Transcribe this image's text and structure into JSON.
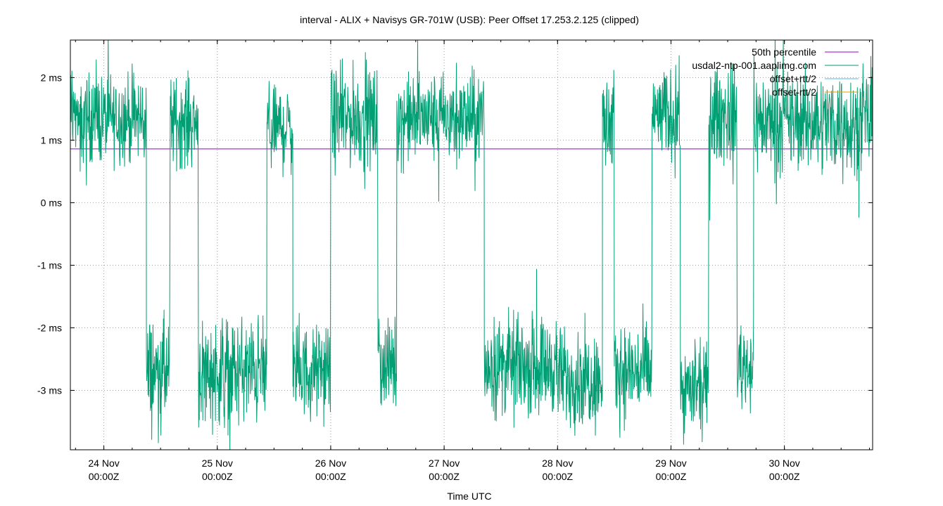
{
  "chart_data": {
    "type": "line",
    "title": "interval - ALIX + Navisys GR-701W (USB): Peer Offset 17.253.2.125 (clipped)",
    "xlabel": "Time UTC",
    "ylabel": "",
    "ylim": [
      -3.95,
      2.6
    ],
    "xlim": [
      "2023-11-23T16:55Z",
      "2023-11-30T18:40Z"
    ],
    "y_ticks": [
      {
        "value": 2,
        "label": "2 ms"
      },
      {
        "value": 1,
        "label": "1 ms"
      },
      {
        "value": 0,
        "label": "0 ms"
      },
      {
        "value": -1,
        "label": "-1 ms"
      },
      {
        "value": -2,
        "label": "-2 ms"
      },
      {
        "value": -3,
        "label": "-3 ms"
      }
    ],
    "x_ticks": [
      {
        "value": "2023-11-24T00:00Z",
        "line1": "24 Nov",
        "line2": "00:00Z"
      },
      {
        "value": "2023-11-25T00:00Z",
        "line1": "25 Nov",
        "line2": "00:00Z"
      },
      {
        "value": "2023-11-26T00:00Z",
        "line1": "26 Nov",
        "line2": "00:00Z"
      },
      {
        "value": "2023-11-27T00:00Z",
        "line1": "27 Nov",
        "line2": "00:00Z"
      },
      {
        "value": "2023-11-28T00:00Z",
        "line1": "28 Nov",
        "line2": "00:00Z"
      },
      {
        "value": "2023-11-29T00:00Z",
        "line1": "29 Nov",
        "line2": "00:00Z"
      },
      {
        "value": "2023-11-30T00:00Z",
        "line1": "30 Nov",
        "line2": "00:00Z"
      }
    ],
    "grid": true,
    "legend_position": "top-right",
    "series": [
      {
        "name": "50th percentile",
        "color": "#9400d3",
        "kind": "hline",
        "value": 0.86
      },
      {
        "name": "usdal2-ntp-001.aaplimg.com",
        "color": "#009e73",
        "kind": "regime-line",
        "segments": [
          {
            "start": "2023-11-23T16:55Z",
            "end": "2023-11-24T09:00Z",
            "level": 1.35,
            "spread": 0.5
          },
          {
            "start": "2023-11-24T09:00Z",
            "end": "2023-11-24T14:00Z",
            "level": -2.7,
            "spread": 0.6
          },
          {
            "start": "2023-11-24T14:00Z",
            "end": "2023-11-24T20:00Z",
            "level": 1.3,
            "spread": 0.5
          },
          {
            "start": "2023-11-24T20:00Z",
            "end": "2023-11-25T10:30Z",
            "level": -2.7,
            "spread": 0.6
          },
          {
            "start": "2023-11-25T10:30Z",
            "end": "2023-11-25T16:00Z",
            "level": 1.2,
            "spread": 0.5
          },
          {
            "start": "2023-11-25T16:00Z",
            "end": "2023-11-26T00:00Z",
            "level": -2.7,
            "spread": 0.5
          },
          {
            "start": "2023-11-26T00:00Z",
            "end": "2023-11-26T10:00Z",
            "level": 1.35,
            "spread": 0.55
          },
          {
            "start": "2023-11-26T10:00Z",
            "end": "2023-11-26T14:00Z",
            "level": -2.6,
            "spread": 0.5
          },
          {
            "start": "2023-11-26T14:00Z",
            "end": "2023-11-27T08:30Z",
            "level": 1.35,
            "spread": 0.5
          },
          {
            "start": "2023-11-27T08:30Z",
            "end": "2023-11-28T00:00Z",
            "level": -2.6,
            "spread": 0.55
          },
          {
            "start": "2023-11-28T00:00Z",
            "end": "2023-11-28T09:30Z",
            "level": -2.8,
            "spread": 0.55
          },
          {
            "start": "2023-11-28T09:30Z",
            "end": "2023-11-28T12:00Z",
            "level": 1.2,
            "spread": 0.6
          },
          {
            "start": "2023-11-28T12:00Z",
            "end": "2023-11-28T20:00Z",
            "level": -2.7,
            "spread": 0.55
          },
          {
            "start": "2023-11-28T20:00Z",
            "end": "2023-11-29T02:00Z",
            "level": 1.4,
            "spread": 0.5
          },
          {
            "start": "2023-11-29T02:00Z",
            "end": "2023-11-29T08:00Z",
            "level": -3.0,
            "spread": 0.5
          },
          {
            "start": "2023-11-29T08:00Z",
            "end": "2023-11-29T14:00Z",
            "level": 1.4,
            "spread": 0.55
          },
          {
            "start": "2023-11-29T14:00Z",
            "end": "2023-11-29T17:30Z",
            "level": -2.6,
            "spread": 0.5
          },
          {
            "start": "2023-11-29T17:30Z",
            "end": "2023-11-30T18:40Z",
            "level": 1.3,
            "spread": 0.55
          }
        ]
      },
      {
        "name": "offset+rtt/2",
        "color": "#56b4e9",
        "kind": "none"
      },
      {
        "name": "offset-rtt/2",
        "color": "#e69f00",
        "kind": "none"
      }
    ]
  }
}
